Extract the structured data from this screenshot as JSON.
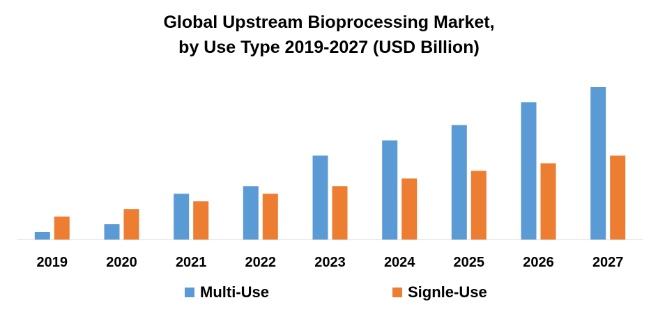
{
  "chart_data": {
    "type": "bar",
    "title_lines": [
      "Global Upstream Bioprocessing Market,",
      "by Use Type 2019-2027 (USD Billion)"
    ],
    "categories": [
      "2019",
      "2020",
      "2021",
      "2022",
      "2023",
      "2024",
      "2025",
      "2026",
      "2027"
    ],
    "series": [
      {
        "name": "Multi-Use",
        "color": "#5b9bd5",
        "values": [
          1,
          2,
          6,
          7,
          11,
          13,
          15,
          18,
          20
        ]
      },
      {
        "name": "Signle-Use",
        "color": "#ed7d31",
        "values": [
          3,
          4,
          5,
          6,
          7,
          8,
          9,
          10,
          11
        ]
      }
    ],
    "ylim": [
      0,
      21
    ],
    "y_axis_shown": false,
    "grid": false,
    "legend_position": "bottom"
  }
}
